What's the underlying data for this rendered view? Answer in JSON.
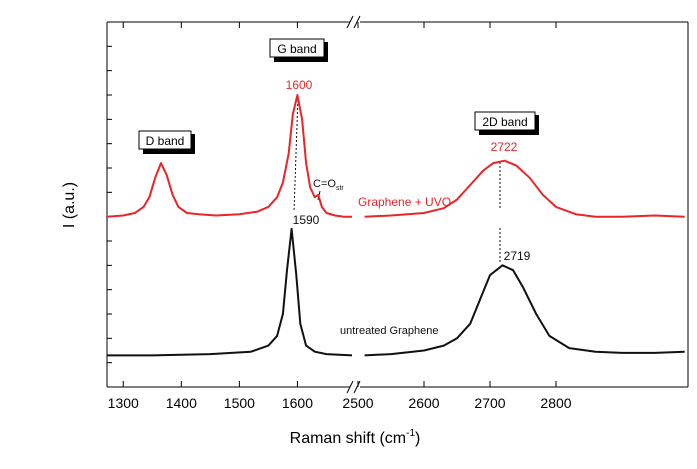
{
  "chart_data": {
    "type": "line",
    "xlabel": "Raman shift (cm",
    "xlabel_sup": "-1",
    "xlabel_end": ")",
    "ylabel": "I (a.u.)",
    "xlim": [
      1272,
      3000
    ],
    "xbreak": [
      1694,
      2500
    ],
    "xticks": [
      1300,
      1400,
      1500,
      1600,
      2500,
      2600,
      2700,
      2800
    ],
    "ylim": [
      0,
      15
    ],
    "yticks": [
      1,
      2,
      3,
      4,
      5,
      6,
      7,
      8,
      9,
      10,
      11,
      12,
      13,
      14
    ],
    "series": [
      {
        "name": "Graphene + UVO",
        "color": "#e8262a",
        "x": [
          1272,
          1300,
          1320,
          1335,
          1345,
          1355,
          1365,
          1375,
          1385,
          1395,
          1410,
          1430,
          1460,
          1500,
          1530,
          1550,
          1565,
          1575,
          1585,
          1592,
          1600,
          1608,
          1615,
          1622,
          1630,
          1636,
          1642,
          1650,
          1665,
          1680,
          1694,
          null,
          2510,
          2550,
          2600,
          2630,
          2650,
          2670,
          2690,
          2705,
          2722,
          2740,
          2760,
          2780,
          2800,
          2830,
          2860,
          2900,
          2950,
          2995
        ],
        "values": [
          7.0,
          7.05,
          7.15,
          7.4,
          7.8,
          8.6,
          9.2,
          8.7,
          7.9,
          7.4,
          7.15,
          7.1,
          7.05,
          7.1,
          7.2,
          7.4,
          7.8,
          8.4,
          9.6,
          11.2,
          12.0,
          11.0,
          9.2,
          8.2,
          7.8,
          7.9,
          7.4,
          7.15,
          7.05,
          7.0,
          7.0,
          null,
          7.0,
          7.05,
          7.15,
          7.35,
          7.7,
          8.3,
          8.9,
          9.2,
          9.3,
          9.1,
          8.6,
          7.9,
          7.4,
          7.1,
          7.0,
          7.0,
          7.05,
          7.0
        ]
      },
      {
        "name": "untreated Graphene",
        "color": "#111111",
        "x": [
          1272,
          1350,
          1450,
          1520,
          1550,
          1565,
          1575,
          1582,
          1590,
          1598,
          1605,
          1615,
          1630,
          1650,
          1694,
          null,
          2510,
          2550,
          2600,
          2630,
          2650,
          2670,
          2685,
          2700,
          2719,
          2735,
          2750,
          2770,
          2790,
          2820,
          2860,
          2900,
          2950,
          2995
        ],
        "values": [
          1.3,
          1.3,
          1.35,
          1.45,
          1.7,
          2.1,
          3.0,
          4.8,
          6.5,
          4.6,
          2.6,
          1.7,
          1.45,
          1.35,
          1.3,
          null,
          1.3,
          1.35,
          1.5,
          1.7,
          2.0,
          2.6,
          3.6,
          4.6,
          5.0,
          4.8,
          4.1,
          3.0,
          2.1,
          1.6,
          1.45,
          1.4,
          1.4,
          1.45
        ]
      }
    ],
    "annotations": {
      "d_band": "D band",
      "g_band": "G band",
      "band_2d": "2D band",
      "g_red": "1600",
      "d2_red": "2722",
      "g_black": "1590",
      "d2_black": "2719",
      "co": "C=O",
      "co_sub": "str"
    }
  }
}
